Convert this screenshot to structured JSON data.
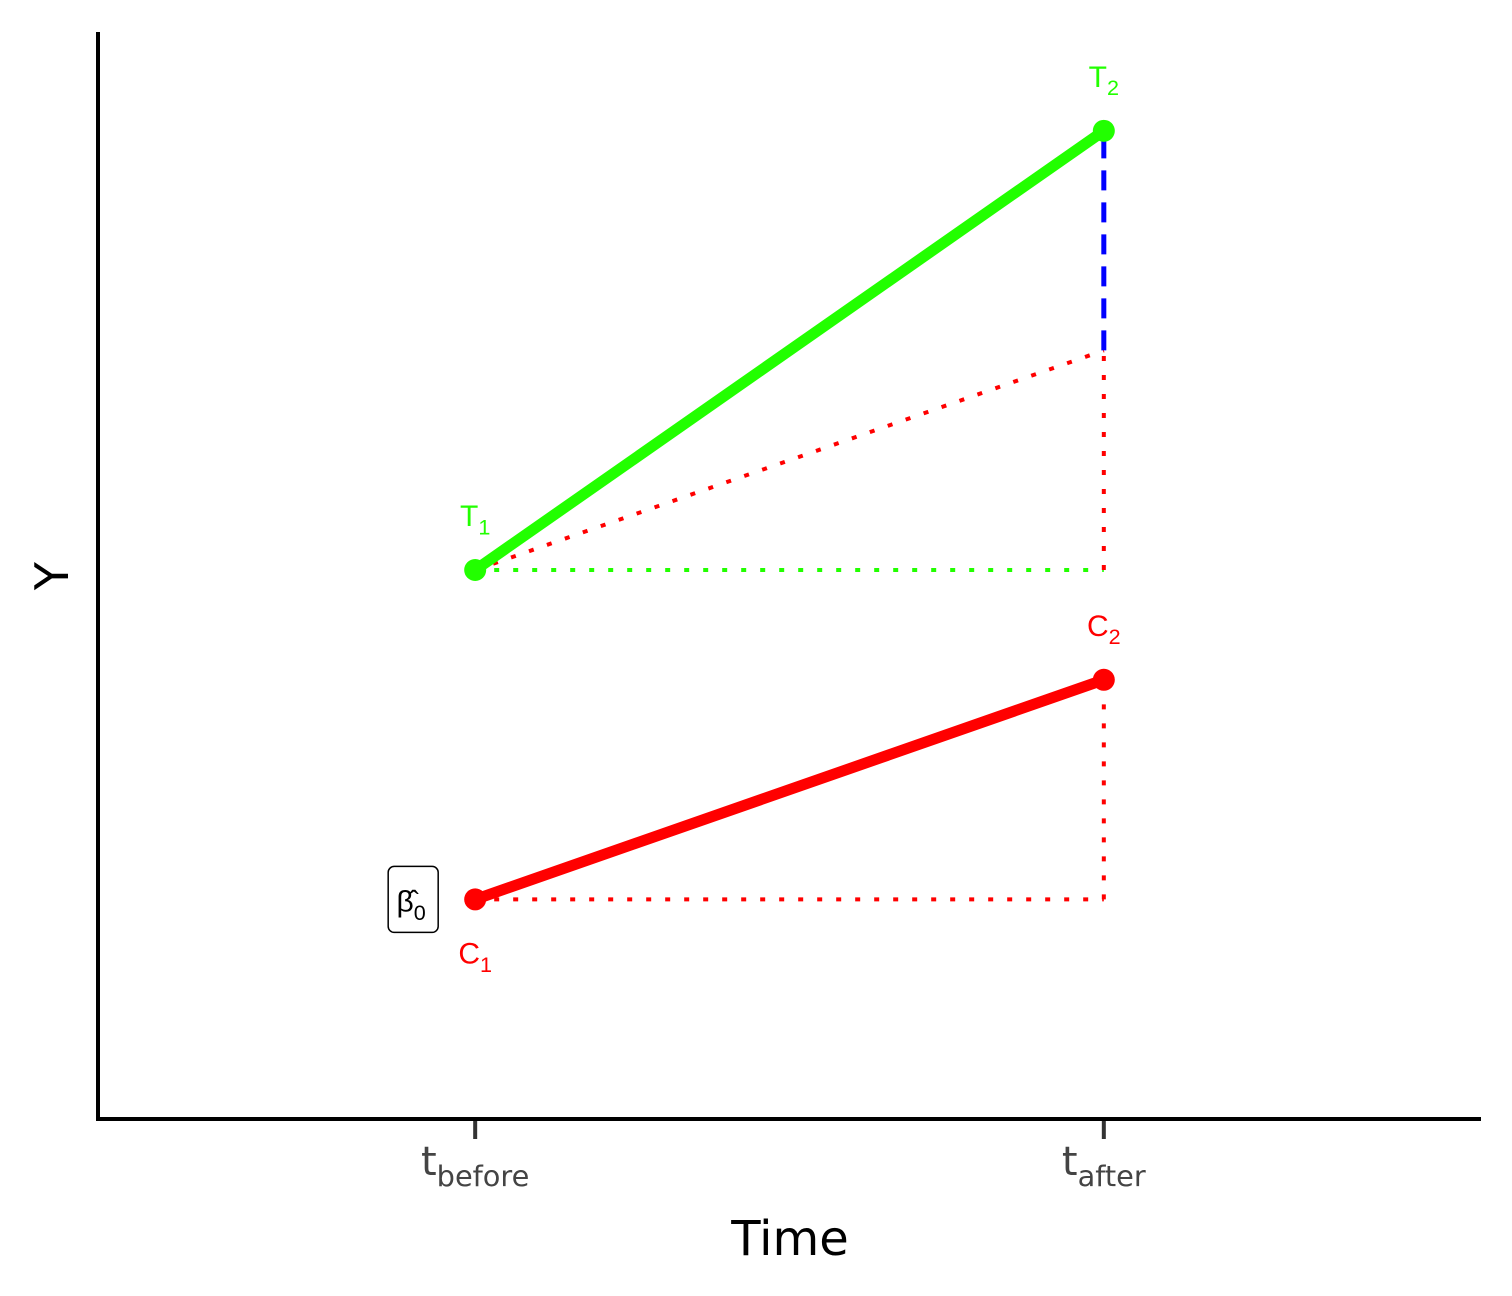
{
  "chart_data": {
    "type": "line",
    "xlabel": "Time",
    "ylabel": "Y",
    "grid": false,
    "x_ticks": [
      {
        "main": "t",
        "sub": "before",
        "x": 1
      },
      {
        "main": "t",
        "sub": "after",
        "x": 2
      }
    ],
    "xlim": [
      0.4,
      2.6
    ],
    "ylim": [
      0.5,
      5.45
    ],
    "series": [
      {
        "color": "#22ff00",
        "points": [
          {
            "x": 1,
            "y": 3.0,
            "label_main": "T",
            "label_sub": "1"
          },
          {
            "x": 2,
            "y": 5.0,
            "label_main": "T",
            "label_sub": "2"
          }
        ]
      },
      {
        "color": "#ff0000",
        "points": [
          {
            "x": 1,
            "y": 1.5,
            "label_main": "C",
            "label_sub": "1"
          },
          {
            "x": 2,
            "y": 2.5,
            "label_main": "C",
            "label_sub": "2"
          }
        ]
      }
    ],
    "guides": [
      {
        "style": "dotted",
        "color": "#ff0000",
        "from": [
          1,
          1.5
        ],
        "to": [
          2,
          1.5
        ]
      },
      {
        "style": "dotted",
        "color": "#ff0000",
        "from": [
          2,
          1.5
        ],
        "to": [
          2,
          2.5
        ]
      },
      {
        "style": "dotted",
        "color": "#22ff00",
        "from": [
          1,
          3.0
        ],
        "to": [
          2,
          3.0
        ]
      },
      {
        "style": "dotted",
        "color": "#ff0000",
        "from": [
          1,
          3.0
        ],
        "to": [
          2,
          4.0
        ]
      },
      {
        "style": "dotted",
        "color": "#ff0000",
        "from": [
          2,
          3.0
        ],
        "to": [
          2,
          4.0
        ]
      },
      {
        "style": "dashed",
        "color": "#0000ff",
        "from": [
          2,
          4.0
        ],
        "to": [
          2,
          5.0
        ]
      }
    ],
    "annotation": {
      "text_main": "β̂",
      "text_sub": "0",
      "at": [
        1,
        1.5
      ],
      "style": "boxed"
    }
  }
}
